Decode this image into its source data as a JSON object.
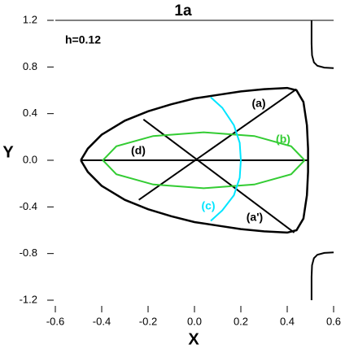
{
  "chart_data": {
    "type": "line",
    "title": "1a",
    "annotation": "h=0.12",
    "xlabel": "X",
    "ylabel": "Y",
    "xlim": [
      -0.6,
      0.6
    ],
    "ylim": [
      -1.2,
      1.2
    ],
    "xticks": [
      -0.6,
      -0.4,
      -0.2,
      {
        "value": 0,
        "label": "0.0"
      },
      0.2,
      0.4,
      0.6
    ],
    "yticks": [
      1.2,
      0.8,
      0.4,
      {
        "value": 0,
        "label": "0.0"
      },
      -0.4,
      -0.8,
      -1.2
    ],
    "series": [
      {
        "color": "#000000",
        "x": [
          -0.49,
          -0.46,
          -0.4,
          -0.3,
          -0.2,
          -0.1,
          0,
          0.1,
          0.2,
          0.3,
          0.4,
          0.44,
          0.47,
          0.485,
          0.49,
          0.49,
          0.485,
          0.47,
          0.44,
          0.4,
          0.3,
          0.2,
          0.1,
          0,
          -0.1,
          -0.2,
          -0.3,
          -0.4,
          -0.46,
          -0.49
        ],
        "values": [
          0,
          0.1,
          0.22,
          0.34,
          0.42,
          0.48,
          0.53,
          0.56,
          0.59,
          0.61,
          0.62,
          0.6,
          0.5,
          0.3,
          0.1,
          -0.1,
          -0.3,
          -0.5,
          -0.6,
          -0.62,
          -0.61,
          -0.59,
          -0.56,
          -0.53,
          -0.48,
          -0.42,
          -0.34,
          -0.22,
          -0.1,
          0
        ]
      },
      {
        "name": "(a)",
        "color": "#000000",
        "x": [
          -0.24,
          0.44
        ],
        "values": [
          -0.34,
          0.61
        ]
      },
      {
        "name": "(a')",
        "color": "#000000",
        "x": [
          -0.22,
          0.43
        ],
        "values": [
          0.35,
          -0.62
        ]
      },
      {
        "name": "(d)",
        "color": "#000000",
        "x": [
          -0.49,
          0.49
        ],
        "values": [
          0,
          0
        ]
      },
      {
        "name": "(b)",
        "color": "#33cc33",
        "x": [
          0.475,
          0.417,
          0.258,
          0.04,
          -0.178,
          -0.337,
          -0.395,
          -0.337,
          -0.178,
          0.04,
          0.258,
          0.417,
          0.475
        ],
        "values": [
          0,
          0.12,
          0.208,
          0.24,
          0.208,
          0.12,
          0,
          -0.12,
          -0.208,
          -0.24,
          -0.208,
          -0.12,
          0
        ]
      },
      {
        "name": "(c)",
        "color": "#00e5ff",
        "x": [
          0.07,
          0.12,
          0.17,
          0.195,
          0.2,
          0.195,
          0.17,
          0.12,
          0.07
        ],
        "values": [
          0.54,
          0.45,
          0.3,
          0.15,
          0,
          -0.15,
          -0.3,
          -0.43,
          -0.52
        ]
      },
      {
        "color": "#000000",
        "x": [
          0.505,
          0.505,
          0.507,
          0.515,
          0.53,
          0.56,
          0.6
        ],
        "values": [
          1.2,
          1.0,
          0.9,
          0.84,
          0.81,
          0.795,
          0.79
        ]
      },
      {
        "color": "#000000",
        "x": [
          0.505,
          0.505,
          0.507,
          0.515,
          0.53,
          0.56,
          0.6
        ],
        "values": [
          -1.2,
          -1.0,
          -0.9,
          -0.84,
          -0.81,
          -0.795,
          -0.79
        ]
      }
    ]
  }
}
